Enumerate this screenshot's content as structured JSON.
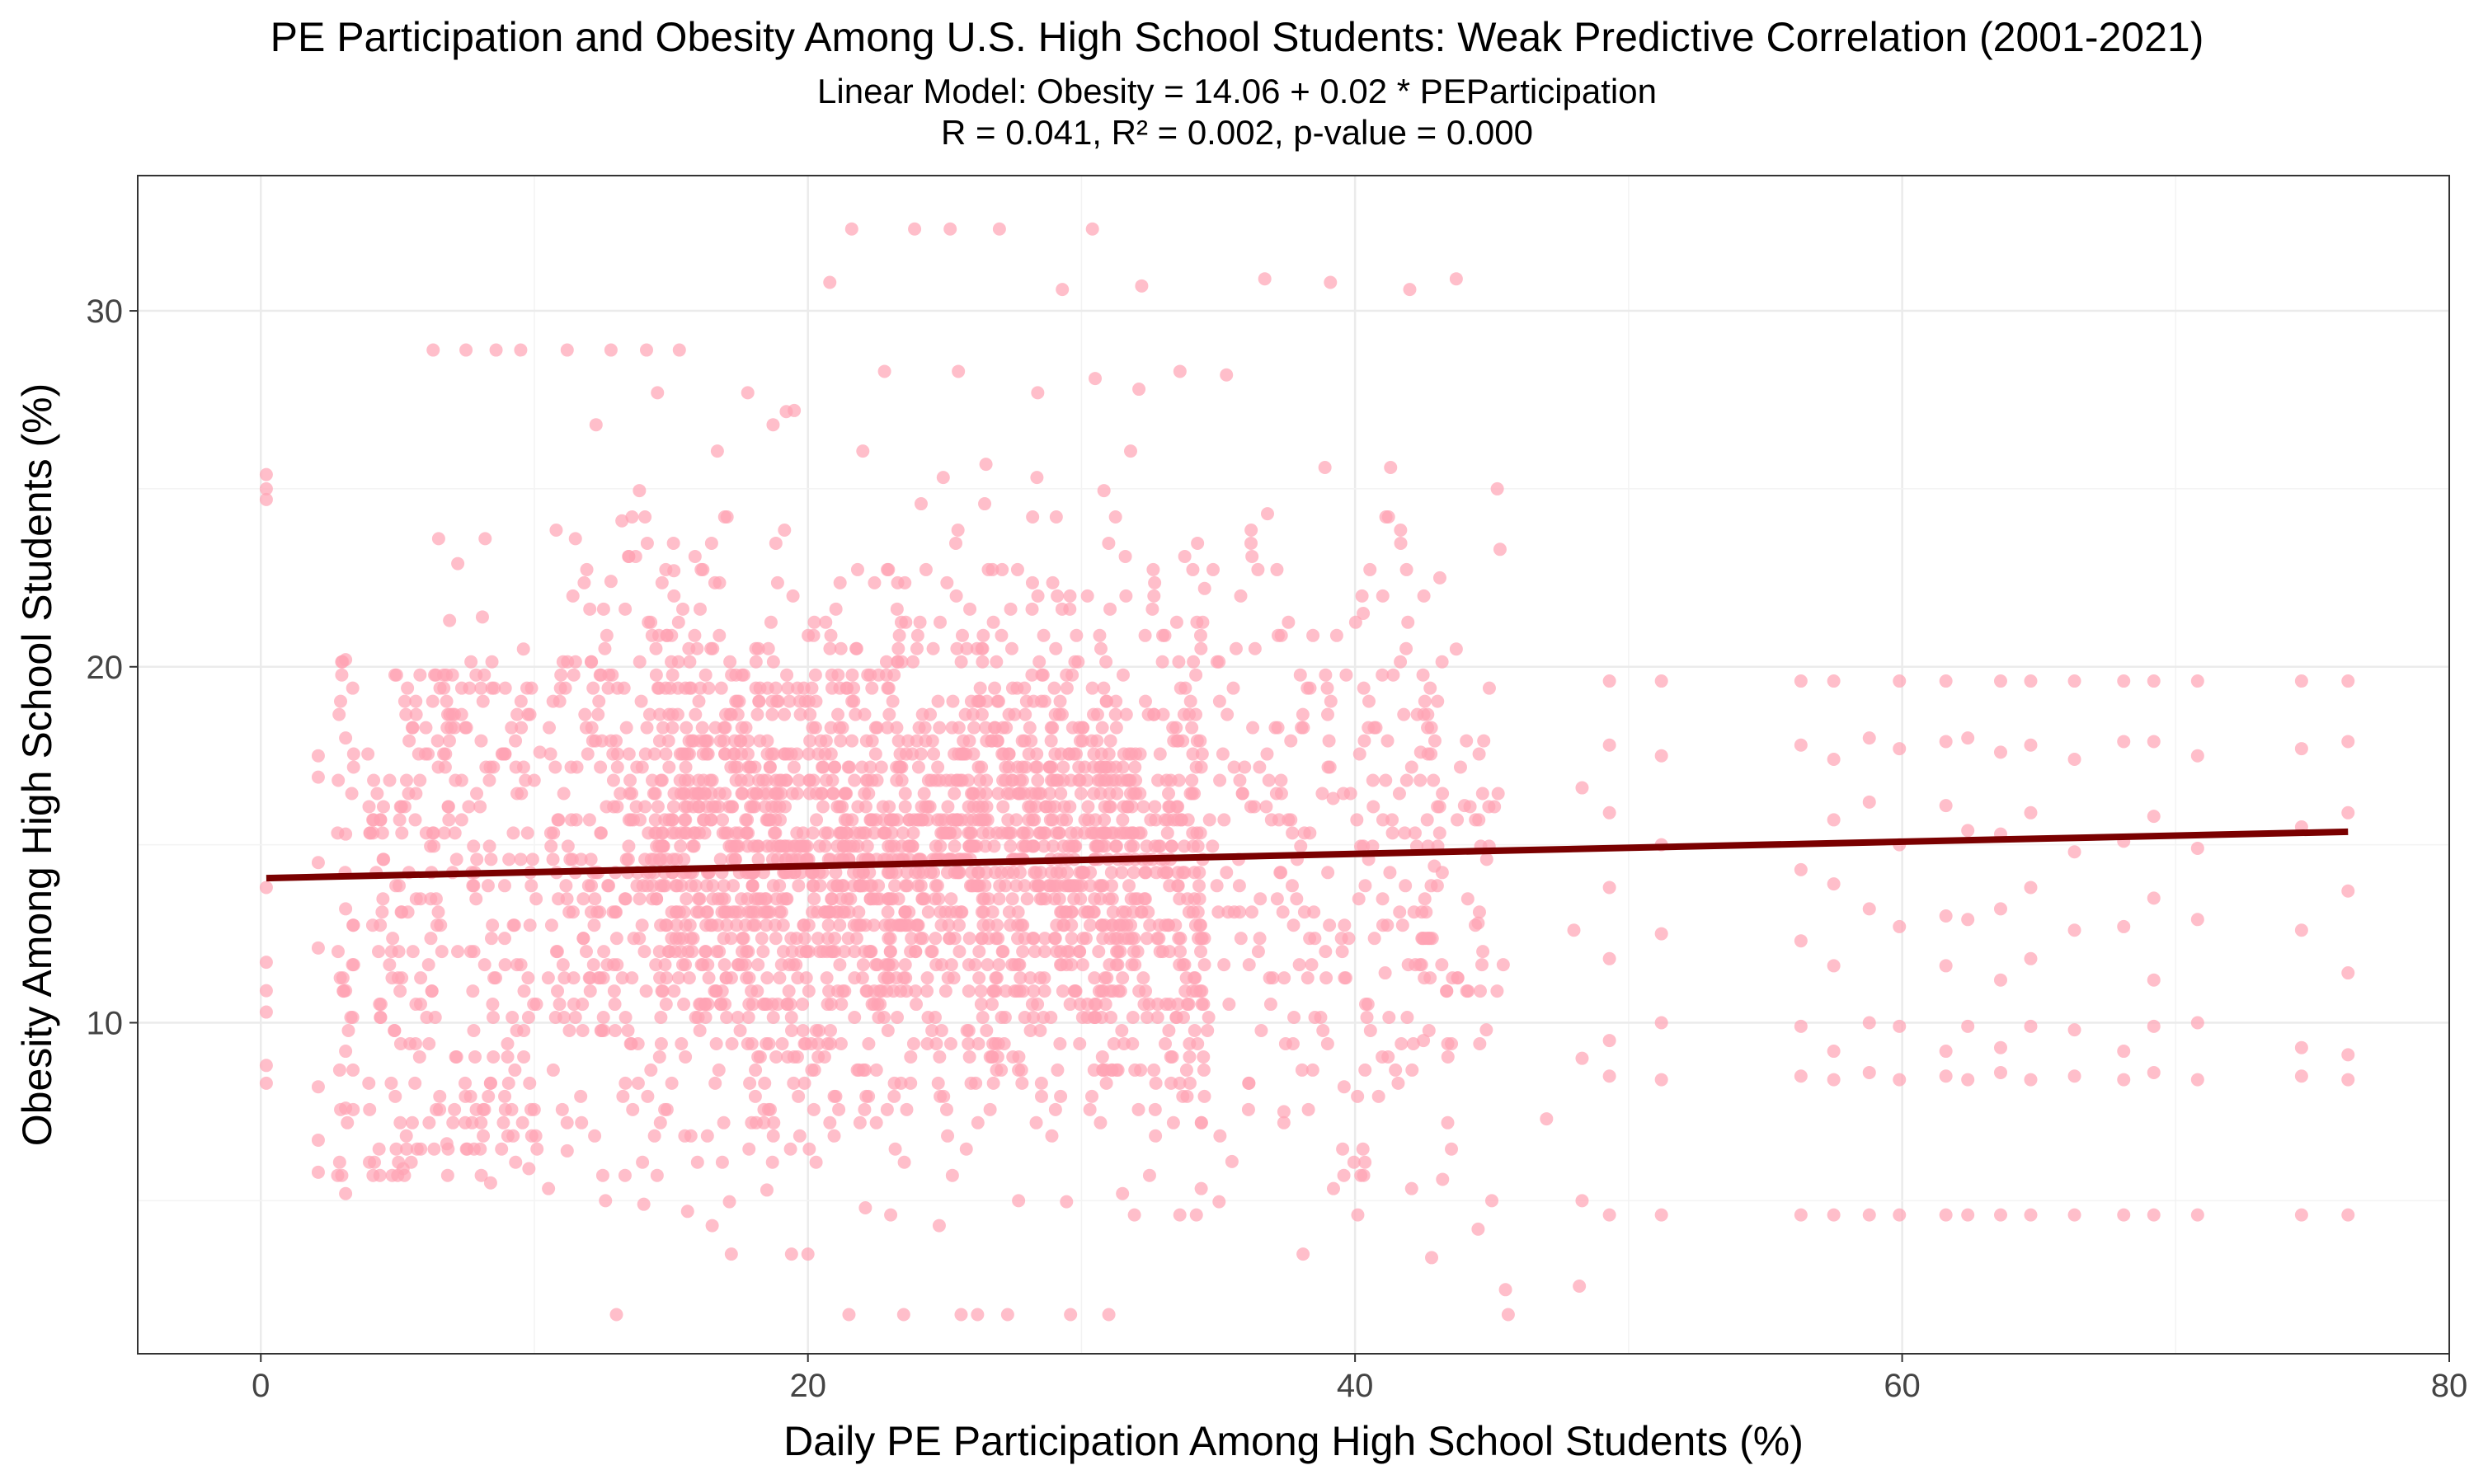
{
  "chart_data": {
    "type": "scatter",
    "title": "PE Participation and Obesity Among U.S. High School Students: Weak Predictive Correlation (2001-2021)",
    "subtitle_lines": [
      "Linear Model: Obesity = 14.06 + 0.02 * PEParticipation",
      "R = 0.041, R² = 0.002, p-value = 0.000"
    ],
    "xlabel": "Daily PE Participation Among High School Students (%)",
    "ylabel": "Obesity Among High School Students (%)",
    "xlim": [
      -4.5,
      80
    ],
    "ylim": [
      0.7,
      33.8
    ],
    "x_ticks": [
      0,
      20,
      40,
      60,
      80
    ],
    "y_ticks": [
      10,
      20,
      30
    ],
    "grid": true,
    "point_color": "#FFA3B3",
    "point_opacity": 0.7,
    "line_color": "#7A0000",
    "regression": {
      "intercept": 14.06,
      "slope": 0.0171,
      "x_range": [
        0.2,
        76.3
      ]
    },
    "series": [
      {
        "points": [
          [
            0.2,
            25.4
          ],
          [
            0.2,
            25.0
          ],
          [
            0.2,
            24.7
          ],
          [
            0.2,
            13.8
          ],
          [
            0.2,
            11.7
          ],
          [
            0.2,
            10.9
          ],
          [
            0.2,
            10.3
          ],
          [
            0.2,
            8.8
          ],
          [
            0.2,
            8.3
          ],
          [
            2.1,
            17.5
          ],
          [
            2.1,
            16.9
          ],
          [
            2.1,
            14.5
          ],
          [
            2.1,
            12.1
          ],
          [
            2.1,
            8.2
          ],
          [
            2.1,
            6.7
          ],
          [
            2.1,
            5.8
          ],
          [
            3.1,
            20.2
          ],
          [
            3.1,
            18.0
          ],
          [
            3.1,
            15.3
          ],
          [
            3.1,
            13.2
          ],
          [
            3.1,
            10.9
          ],
          [
            3.1,
            9.2
          ],
          [
            3.1,
            7.6
          ],
          [
            3.1,
            5.2
          ],
          [
            6.5,
            23.6
          ],
          [
            7.2,
            22.9
          ],
          [
            8.1,
            21.4
          ],
          [
            6.9,
            21.3
          ],
          [
            8.2,
            23.6
          ],
          [
            6.3,
            28.9
          ],
          [
            7.5,
            28.9
          ],
          [
            8.6,
            28.9
          ],
          [
            9.5,
            28.9
          ],
          [
            11.2,
            28.9
          ],
          [
            12.8,
            28.9
          ],
          [
            14.1,
            28.9
          ],
          [
            15.3,
            28.9
          ],
          [
            20.8,
            30.8
          ],
          [
            21.6,
            32.3
          ],
          [
            23.9,
            32.3
          ],
          [
            25.2,
            32.3
          ],
          [
            27.0,
            32.3
          ],
          [
            29.3,
            30.6
          ],
          [
            30.4,
            32.3
          ],
          [
            32.2,
            30.7
          ],
          [
            36.7,
            30.9
          ],
          [
            39.1,
            30.8
          ],
          [
            42.0,
            30.6
          ],
          [
            43.7,
            30.9
          ],
          [
            44.0,
            16.1
          ],
          [
            44.5,
            12.8
          ],
          [
            45.2,
            25.0
          ],
          [
            45.3,
            23.3
          ],
          [
            44.8,
            9.8
          ],
          [
            45.5,
            2.5
          ],
          [
            45.6,
            1.8
          ],
          [
            44.5,
            4.2
          ],
          [
            42.8,
            3.4
          ],
          [
            48.3,
            16.6
          ],
          [
            48.0,
            12.6
          ],
          [
            48.3,
            9.0
          ],
          [
            48.3,
            5.0
          ],
          [
            48.2,
            2.6
          ],
          [
            45.0,
            5.0
          ],
          [
            47.0,
            7.3
          ],
          [
            49.3,
            19.6
          ],
          [
            49.3,
            17.8
          ],
          [
            49.3,
            15.9
          ],
          [
            49.3,
            13.8
          ],
          [
            49.3,
            11.8
          ],
          [
            49.3,
            9.5
          ],
          [
            49.3,
            8.5
          ],
          [
            49.3,
            4.6
          ],
          [
            51.2,
            19.6
          ],
          [
            51.2,
            17.5
          ],
          [
            51.2,
            15.0
          ],
          [
            51.2,
            12.5
          ],
          [
            51.2,
            10.0
          ],
          [
            51.2,
            8.4
          ],
          [
            51.2,
            4.6
          ],
          [
            56.3,
            19.6
          ],
          [
            56.3,
            17.8
          ],
          [
            56.3,
            14.3
          ],
          [
            56.3,
            12.3
          ],
          [
            56.3,
            9.9
          ],
          [
            56.3,
            8.5
          ],
          [
            56.3,
            4.6
          ],
          [
            57.5,
            19.6
          ],
          [
            57.5,
            17.4
          ],
          [
            57.5,
            15.7
          ],
          [
            57.5,
            13.9
          ],
          [
            57.5,
            11.6
          ],
          [
            57.5,
            9.2
          ],
          [
            57.5,
            8.4
          ],
          [
            57.5,
            4.6
          ],
          [
            58.8,
            18.0
          ],
          [
            58.8,
            16.2
          ],
          [
            58.8,
            13.2
          ],
          [
            58.8,
            10.0
          ],
          [
            58.8,
            8.6
          ],
          [
            58.8,
            4.6
          ],
          [
            59.9,
            19.6
          ],
          [
            59.9,
            17.7
          ],
          [
            59.9,
            15.0
          ],
          [
            59.9,
            12.7
          ],
          [
            59.9,
            9.9
          ],
          [
            59.9,
            8.4
          ],
          [
            59.9,
            4.6
          ],
          [
            61.6,
            19.6
          ],
          [
            61.6,
            17.9
          ],
          [
            61.6,
            16.1
          ],
          [
            61.6,
            13.0
          ],
          [
            61.6,
            11.6
          ],
          [
            61.6,
            9.2
          ],
          [
            61.6,
            8.5
          ],
          [
            61.6,
            4.6
          ],
          [
            62.4,
            18.0
          ],
          [
            62.4,
            15.4
          ],
          [
            62.4,
            12.9
          ],
          [
            62.4,
            9.9
          ],
          [
            62.4,
            8.4
          ],
          [
            62.4,
            4.6
          ],
          [
            63.6,
            19.6
          ],
          [
            63.6,
            17.6
          ],
          [
            63.6,
            15.3
          ],
          [
            63.6,
            13.2
          ],
          [
            63.6,
            11.2
          ],
          [
            63.6,
            9.3
          ],
          [
            63.6,
            8.6
          ],
          [
            63.6,
            4.6
          ],
          [
            64.7,
            19.6
          ],
          [
            64.7,
            17.8
          ],
          [
            64.7,
            15.9
          ],
          [
            64.7,
            13.8
          ],
          [
            64.7,
            11.8
          ],
          [
            64.7,
            9.9
          ],
          [
            64.7,
            8.4
          ],
          [
            64.7,
            4.6
          ],
          [
            66.3,
            19.6
          ],
          [
            66.3,
            17.4
          ],
          [
            66.3,
            14.8
          ],
          [
            66.3,
            12.6
          ],
          [
            66.3,
            9.8
          ],
          [
            66.3,
            8.5
          ],
          [
            66.3,
            4.6
          ],
          [
            68.1,
            19.6
          ],
          [
            68.1,
            17.9
          ],
          [
            68.1,
            15.1
          ],
          [
            68.1,
            12.7
          ],
          [
            68.1,
            9.2
          ],
          [
            68.1,
            8.4
          ],
          [
            68.1,
            4.6
          ],
          [
            69.2,
            19.6
          ],
          [
            69.2,
            17.9
          ],
          [
            69.2,
            15.8
          ],
          [
            69.2,
            13.5
          ],
          [
            69.2,
            11.2
          ],
          [
            69.2,
            9.9
          ],
          [
            69.2,
            8.6
          ],
          [
            69.2,
            4.6
          ],
          [
            70.8,
            19.6
          ],
          [
            70.8,
            17.5
          ],
          [
            70.8,
            14.9
          ],
          [
            70.8,
            12.9
          ],
          [
            70.8,
            10.0
          ],
          [
            70.8,
            8.4
          ],
          [
            70.8,
            4.6
          ],
          [
            74.6,
            19.6
          ],
          [
            74.6,
            17.7
          ],
          [
            74.6,
            15.5
          ],
          [
            74.6,
            12.6
          ],
          [
            74.6,
            9.3
          ],
          [
            74.6,
            8.5
          ],
          [
            74.6,
            4.6
          ],
          [
            76.3,
            19.6
          ],
          [
            76.3,
            17.9
          ],
          [
            76.3,
            15.9
          ],
          [
            76.3,
            13.7
          ],
          [
            76.3,
            11.4
          ],
          [
            76.3,
            9.1
          ],
          [
            76.3,
            8.4
          ],
          [
            76.3,
            4.6
          ],
          [
            13.0,
            1.8
          ],
          [
            20.0,
            3.5
          ],
          [
            23.5,
            1.8
          ],
          [
            25.6,
            1.8
          ],
          [
            27.3,
            1.8
          ],
          [
            29.6,
            1.8
          ],
          [
            31.0,
            1.8
          ],
          [
            21.5,
            1.8
          ],
          [
            26.2,
            1.8
          ],
          [
            16.5,
            4.3
          ],
          [
            19.4,
            3.5
          ],
          [
            17.2,
            3.5
          ],
          [
            24.8,
            4.3
          ],
          [
            34.2,
            4.6
          ],
          [
            38.1,
            3.5
          ],
          [
            40.1,
            4.6
          ],
          [
            43.2,
            5.6
          ],
          [
            42.5,
            9.5
          ],
          [
            42.9,
            14.4
          ],
          [
            42.4,
            17.6
          ],
          [
            43.7,
            20.5
          ],
          [
            43.1,
            22.5
          ],
          [
            41.3,
            25.6
          ],
          [
            38.9,
            25.6
          ],
          [
            35.3,
            28.2
          ],
          [
            33.6,
            28.3
          ],
          [
            32.1,
            27.8
          ],
          [
            11.5,
            23.6
          ],
          [
            12.8,
            22.4
          ],
          [
            15.1,
            22.7
          ],
          [
            13.2,
            24.1
          ],
          [
            9.6,
            20.5
          ],
          [
            10.2,
            17.6
          ],
          [
            14.5,
            27.7
          ],
          [
            17.8,
            27.7
          ],
          [
            19.5,
            27.2
          ],
          [
            22.8,
            28.3
          ],
          [
            25.5,
            28.3
          ],
          [
            28.4,
            27.7
          ],
          [
            30.5,
            28.1
          ],
          [
            15.6,
            4.7
          ],
          [
            18.5,
            5.3
          ],
          [
            22.1,
            4.8
          ],
          [
            27.7,
            5.0
          ],
          [
            31.5,
            5.2
          ],
          [
            35.5,
            6.1
          ],
          [
            37.4,
            7.5
          ],
          [
            39.6,
            8.2
          ],
          [
            41.1,
            11.4
          ],
          [
            39.2,
            16.3
          ],
          [
            40.3,
            21.5
          ],
          [
            36.8,
            24.3
          ],
          [
            34.5,
            22.2
          ],
          [
            5.2,
            5.9
          ],
          [
            6.8,
            6.6
          ],
          [
            8.4,
            5.5
          ],
          [
            9.8,
            5.9
          ],
          [
            11.2,
            6.4
          ],
          [
            12.6,
            5.0
          ],
          [
            14.0,
            4.9
          ]
        ]
      }
    ]
  }
}
